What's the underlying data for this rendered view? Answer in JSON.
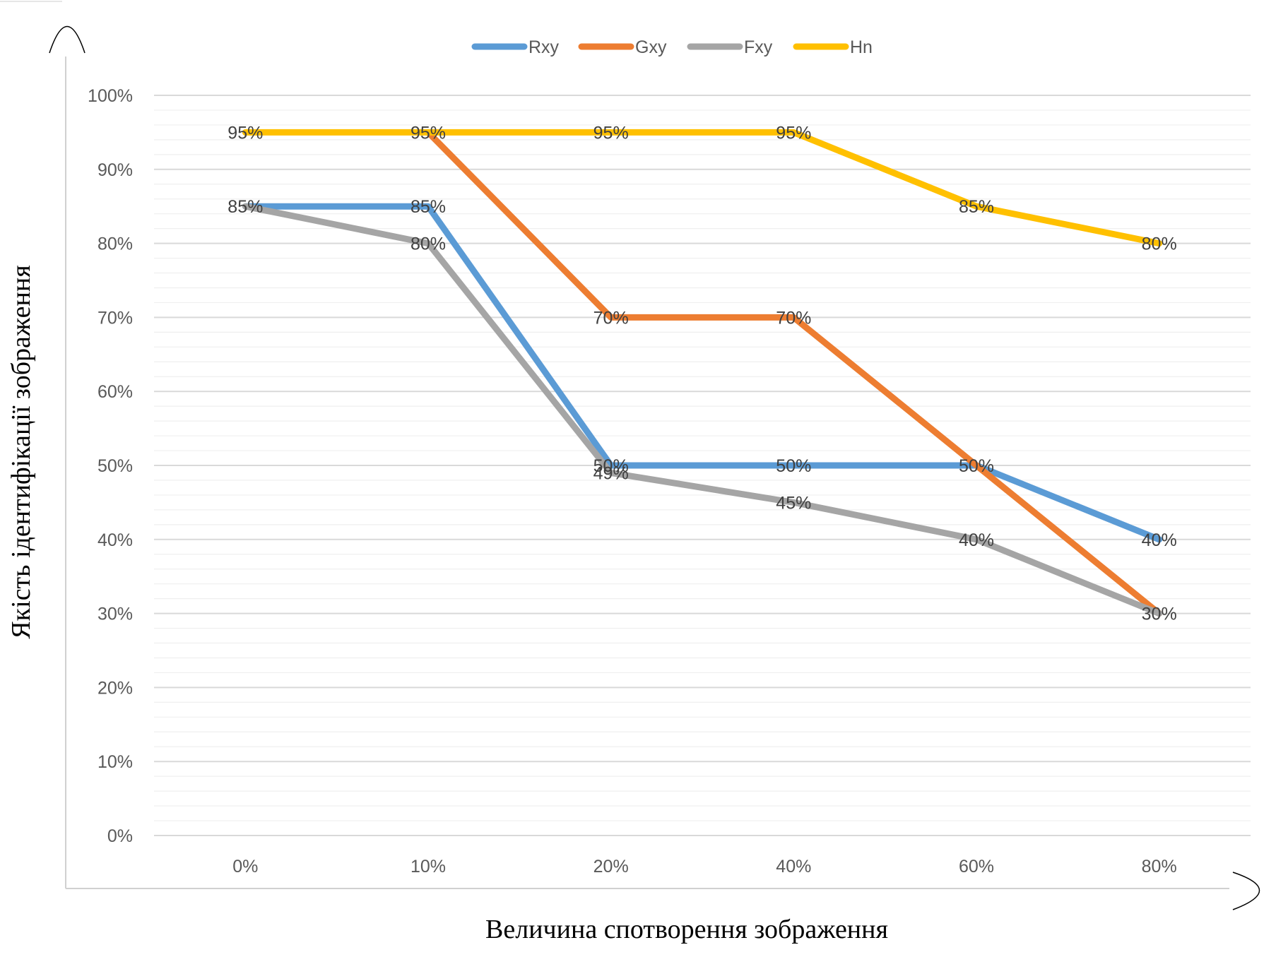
{
  "chart_data": {
    "type": "line",
    "xlabel": "Величина спотворення зображення",
    "ylabel": "Якість ідентифікації зображення",
    "categories": [
      "0%",
      "10%",
      "20%",
      "40%",
      "60%",
      "80%"
    ],
    "ylim": [
      0,
      100
    ],
    "yticks": [
      "0%",
      "10%",
      "20%",
      "30%",
      "40%",
      "50%",
      "60%",
      "70%",
      "80%",
      "90%",
      "100%"
    ],
    "grid": true,
    "legend_position": "top",
    "series": [
      {
        "name": "Rxy",
        "color": "#5B9BD5",
        "values": [
          85,
          85,
          50,
          50,
          50,
          40
        ],
        "labels": [
          "85%",
          "85%",
          "50%",
          "50%",
          "50%",
          "40%"
        ]
      },
      {
        "name": "Gxy",
        "color": "#ED7D31",
        "values": [
          null,
          95,
          70,
          70,
          50,
          30
        ],
        "labels": [
          "",
          "",
          "70%",
          "70%",
          "",
          ""
        ]
      },
      {
        "name": "Fxy",
        "color": "#A5A5A5",
        "values": [
          85,
          80,
          49,
          45,
          40,
          30
        ],
        "labels": [
          "",
          "80%",
          "49%",
          "45%",
          "40%",
          "30%"
        ]
      },
      {
        "name": "Hn",
        "color": "#FFC000",
        "values": [
          95,
          95,
          95,
          95,
          85,
          80
        ],
        "labels": [
          "95%",
          "95%",
          "95%",
          "95%",
          "85%",
          "80%"
        ]
      }
    ]
  }
}
